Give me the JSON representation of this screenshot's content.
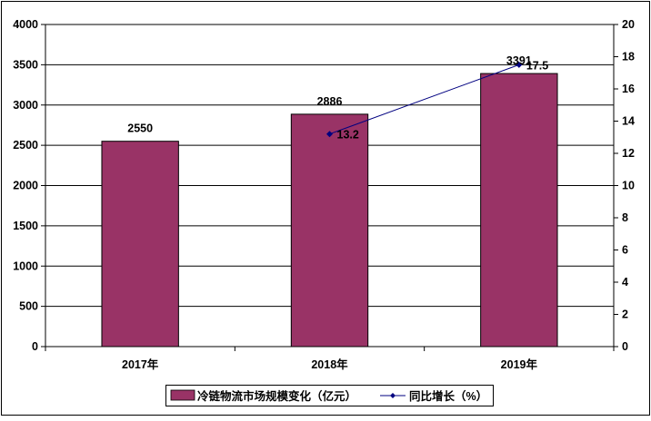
{
  "chart_data": {
    "type": "bar",
    "categories": [
      "2017年",
      "2018年",
      "2019年"
    ],
    "series": [
      {
        "name": "冷链物流市场规模变化（亿元）",
        "type": "bar",
        "axis": "left",
        "values": [
          2550,
          2886,
          3391
        ],
        "labels": [
          "2550",
          "2886",
          "3391"
        ],
        "color": "#993366"
      },
      {
        "name": "同比增长（%）",
        "type": "line",
        "axis": "right",
        "values": [
          null,
          13.2,
          17.5
        ],
        "labels": [
          "",
          "13.2",
          "17.5"
        ],
        "color": "#000080"
      }
    ],
    "y_left": {
      "range": [
        0,
        4000
      ],
      "ticks": [
        "0",
        "500",
        "1000",
        "1500",
        "2000",
        "2500",
        "3000",
        "3500",
        "4000"
      ]
    },
    "y_right": {
      "range": [
        0,
        20
      ],
      "ticks": [
        "0",
        "2",
        "4",
        "6",
        "8",
        "10",
        "12",
        "14",
        "16",
        "18",
        "20"
      ]
    },
    "grid": "horizontal",
    "legend_position": "bottom",
    "title": "",
    "xlabel": "",
    "ylabel": ""
  }
}
